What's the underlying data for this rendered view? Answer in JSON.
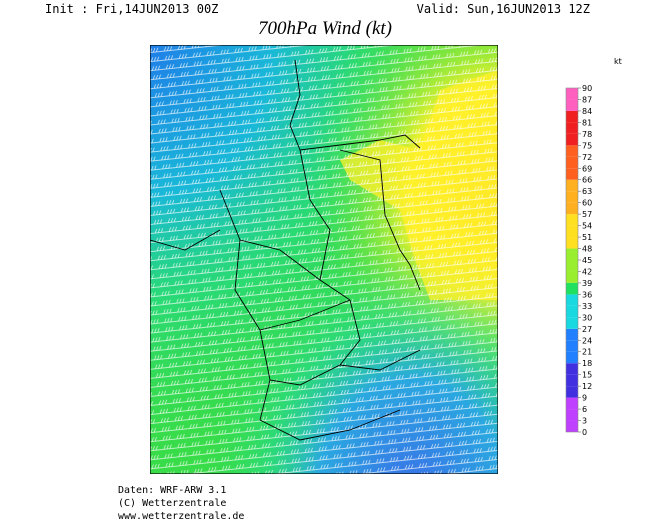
{
  "header": {
    "init": "Init : Fri,14JUN2013 00Z",
    "valid": "Valid: Sun,16JUN2013 12Z",
    "title": "700hPa Wind (kt)"
  },
  "colorbar": {
    "unit": "kt",
    "ticks": [
      90,
      87,
      84,
      81,
      78,
      75,
      72,
      69,
      66,
      63,
      60,
      57,
      54,
      51,
      48,
      45,
      42,
      39,
      36,
      33,
      30,
      27,
      24,
      21,
      18,
      15,
      12,
      9,
      6,
      3,
      0
    ]
  },
  "footer": {
    "line1": "Daten: WRF-ARW 3.1",
    "line2": "(C) Wetterzentrale",
    "line3": "www.wetterzentrale.de"
  }
}
